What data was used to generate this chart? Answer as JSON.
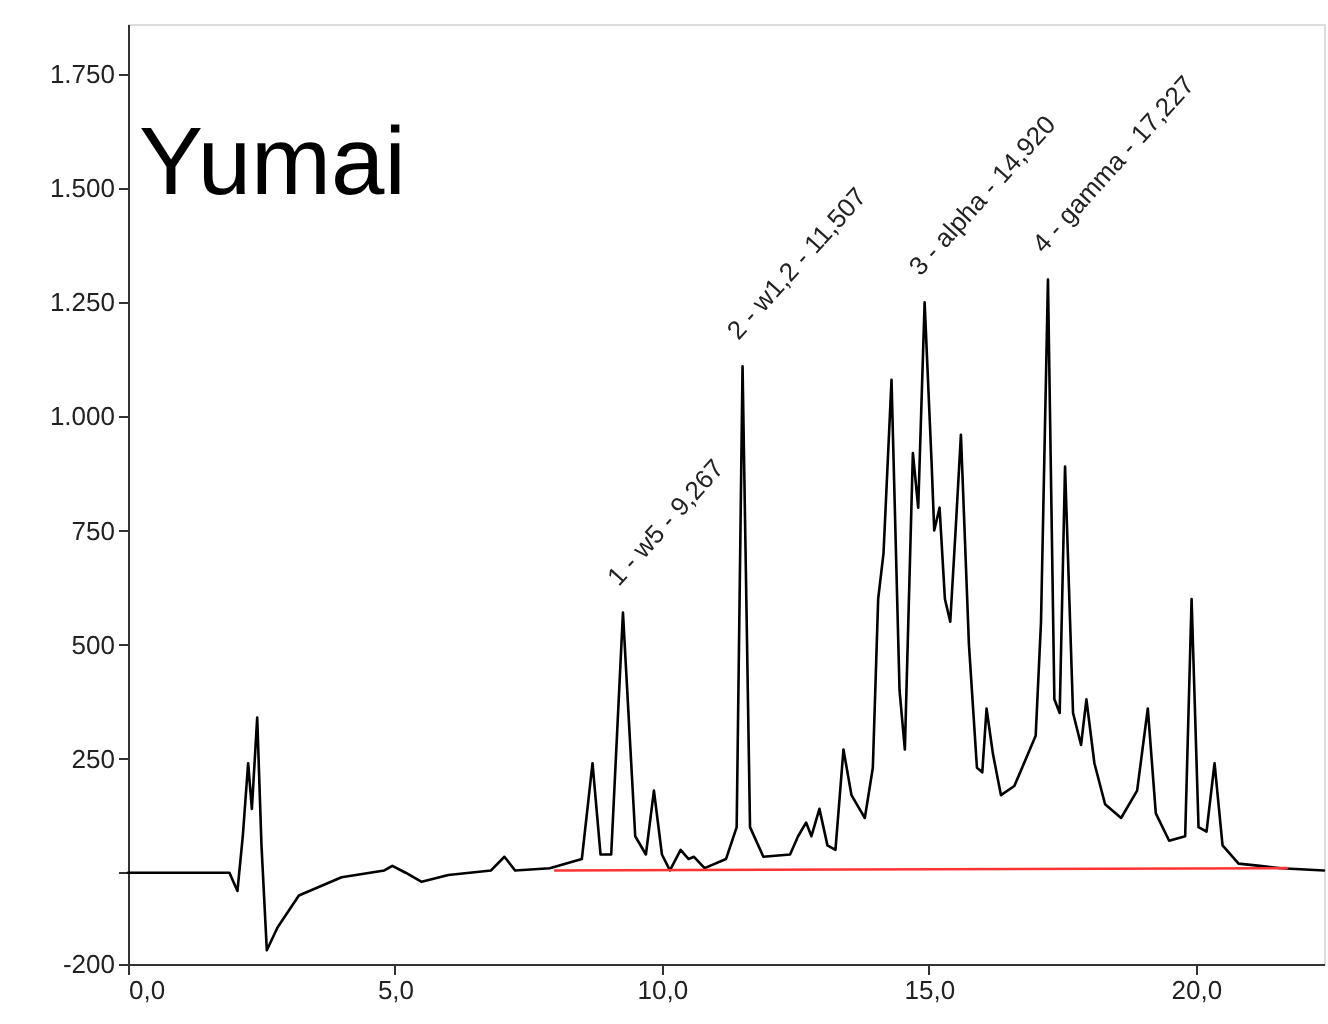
{
  "chart_data": {
    "type": "line",
    "title": "Yumai",
    "series": [
      {
        "color": "#000000",
        "x": [
          0,
          1.9,
          2.05,
          2.15,
          2.25,
          2.32,
          2.42,
          2.5,
          2.6,
          2.8,
          3.2,
          4,
          4.8,
          4.95,
          5.2,
          5.5,
          6,
          6.8,
          7.05,
          7.25,
          7.9,
          8.5,
          8.7,
          8.85,
          9.05,
          9.27,
          9.5,
          9.7,
          9.85,
          10.0,
          10.15,
          10.35,
          10.5,
          10.6,
          10.8,
          11.2,
          11.4,
          11.51,
          11.65,
          11.9,
          12.4,
          12.55,
          12.7,
          12.8,
          12.95,
          13.1,
          13.25,
          13.4,
          13.55,
          13.7,
          13.8,
          13.95,
          14.05,
          14.15,
          14.3,
          14.45,
          14.55,
          14.7,
          14.8,
          14.92,
          15.05,
          15.1,
          15.2,
          15.3,
          15.4,
          15.5,
          15.6,
          15.75,
          15.9,
          16.0,
          16.08,
          16.2,
          16.35,
          16.6,
          17.0,
          17.1,
          17.23,
          17.35,
          17.45,
          17.55,
          17.7,
          17.85,
          17.95,
          18.1,
          18.3,
          18.6,
          18.9,
          19.1,
          19.25,
          19.5,
          19.8,
          19.92,
          20.05,
          20.2,
          20.35,
          20.5,
          20.8,
          21.2,
          21.6,
          22.4
        ],
        "values": [
          0,
          0,
          -40,
          80,
          240,
          140,
          340,
          60,
          -170,
          -120,
          -50,
          -10,
          5,
          15,
          0,
          -20,
          -5,
          5,
          35,
          5,
          10,
          30,
          240,
          40,
          40,
          570,
          80,
          40,
          180,
          40,
          5,
          50,
          30,
          35,
          10,
          30,
          100,
          1110,
          100,
          35,
          40,
          80,
          110,
          80,
          140,
          60,
          50,
          270,
          170,
          140,
          120,
          230,
          600,
          700,
          1080,
          400,
          270,
          920,
          800,
          1250,
          900,
          750,
          800,
          600,
          550,
          750,
          960,
          500,
          230,
          220,
          360,
          260,
          170,
          190,
          300,
          550,
          1300,
          380,
          350,
          890,
          350,
          280,
          380,
          240,
          150,
          120,
          180,
          360,
          130,
          70,
          80,
          600,
          100,
          90,
          240,
          60,
          20,
          15,
          10,
          5
        ]
      },
      {
        "color": "#ff3333",
        "x": [
          8.0,
          21.7
        ],
        "values": [
          5,
          10
        ]
      }
    ],
    "annotations": [
      {
        "text": "1 - w5 - 9,267",
        "x": 9.27,
        "y": 570
      },
      {
        "text": "2 - w1,2 - 11,507",
        "x": 11.51,
        "y": 1110
      },
      {
        "text": "3 - alpha - 14,920",
        "x": 14.92,
        "y": 1250
      },
      {
        "text": "4 - gamma - 17,227",
        "x": 17.23,
        "y": 1300
      }
    ],
    "xlim": [
      0,
      22.4
    ],
    "xticks": [
      {
        "value": 0,
        "label": "0,0"
      },
      {
        "value": 5,
        "label": "5,0"
      },
      {
        "value": 10,
        "label": "10,0"
      },
      {
        "value": 15,
        "label": "15,0"
      },
      {
        "value": 20,
        "label": "20,0"
      }
    ],
    "ylim": [
      -200,
      1860
    ],
    "yticks": [
      -200,
      {
        "value": 0,
        "label": null
      },
      250,
      500,
      750,
      {
        "value": 1000,
        "label": "1.000"
      },
      {
        "value": 1250,
        "label": "1.250"
      },
      {
        "value": 1500,
        "label": "1.500"
      },
      {
        "value": 1750,
        "label": "1.750"
      }
    ],
    "grid": false,
    "line_style": "solid",
    "marker": "none"
  }
}
